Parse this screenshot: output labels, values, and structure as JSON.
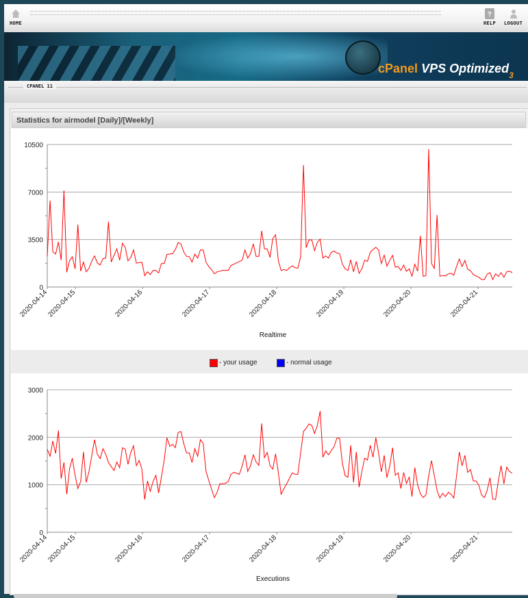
{
  "nav": {
    "home": "HOME",
    "help": "HELP",
    "logout": "LOGOUT"
  },
  "banner": {
    "brand": "cPanel",
    "product": "VPS Optimized",
    "version": "3"
  },
  "breadcrumb": {
    "label": "CPANEL 11"
  },
  "stats": {
    "title": "Statistics for airmodel [Daily]/[Weekly]"
  },
  "legend": {
    "your_usage": "- your usage",
    "normal_usage": "- normal usage",
    "your_color": "#ff0000",
    "normal_color": "#0000ff"
  },
  "chart_data": [
    {
      "type": "line",
      "title": "Realtime",
      "xlabel": "Realtime",
      "ylabel": "",
      "ylim": [
        0,
        10500
      ],
      "yticks": [
        0,
        3500,
        7000,
        10500
      ],
      "xlim_days": [
        0.58,
        7.51
      ],
      "xticks": [
        {
          "label": "2020-04-14",
          "day": 0.58
        },
        {
          "label": "2020-04-15",
          "day": 1
        },
        {
          "label": "2020-04-16",
          "day": 2
        },
        {
          "label": "2020-04-17",
          "day": 3
        },
        {
          "label": "2020-04-18",
          "day": 4
        },
        {
          "label": "2020-04-19",
          "day": 5
        },
        {
          "label": "2020-04-20",
          "day": 6
        },
        {
          "label": "2020-04-21",
          "day": 7
        }
      ],
      "grid": true,
      "series": [
        {
          "name": "your usage",
          "color": "#ff0000",
          "values": [
            2260,
            6370,
            2600,
            2430,
            3320,
            1980,
            7120,
            1090,
            1930,
            2230,
            1340,
            4600,
            1170,
            1840,
            1120,
            1390,
            1930,
            2290,
            1760,
            1620,
            2090,
            2130,
            4810,
            1840,
            2350,
            2810,
            1980,
            3230,
            2930,
            1930,
            2180,
            2730,
            1760,
            1790,
            1830,
            840,
            1120,
            920,
            1220,
            1220,
            1040,
            1730,
            1730,
            2400,
            2430,
            2460,
            2760,
            3270,
            3180,
            2600,
            2260,
            2230,
            1840,
            2430,
            2130,
            2730,
            2730,
            1840,
            1510,
            1290,
            970,
            1120,
            1170,
            1220,
            1220,
            1220,
            1590,
            1680,
            1780,
            1880,
            1980,
            2730,
            2130,
            2460,
            3180,
            2260,
            2260,
            4140,
            2810,
            2800,
            2180,
            3570,
            3850,
            1930,
            1220,
            1290,
            1220,
            1420,
            1560,
            1420,
            1390,
            2230,
            8990,
            2900,
            3470,
            3470,
            2680,
            3300,
            3530,
            2130,
            2290,
            2130,
            2550,
            2650,
            2510,
            2460,
            1680,
            1340,
            1220,
            2010,
            1120,
            1880,
            1010,
            1340,
            1980,
            1890,
            2550,
            2760,
            2930,
            2730,
            1730,
            2350,
            1540,
            1960,
            2330,
            1470,
            1510,
            1220,
            1620,
            1160,
            1340,
            800,
            1680,
            1160,
            3770,
            790,
            850,
            10170,
            1730,
            1370,
            5310,
            790,
            850,
            820,
            970,
            1020,
            870,
            1510,
            2060,
            1510,
            1960,
            1310,
            1210,
            920,
            820,
            720,
            550,
            550,
            950,
            1060,
            540,
            970,
            790,
            1060,
            720,
            1120,
            1170,
            1060
          ]
        }
      ]
    },
    {
      "type": "line",
      "title": "Executions",
      "xlabel": "Executions",
      "ylabel": "",
      "ylim": [
        0,
        3000
      ],
      "yticks": [
        0,
        1000,
        2000,
        3000
      ],
      "xlim_days": [
        0.58,
        7.51
      ],
      "xticks": [
        {
          "label": "2020-04-14",
          "day": 0.58
        },
        {
          "label": "2020-04-15",
          "day": 1
        },
        {
          "label": "2020-04-16",
          "day": 2
        },
        {
          "label": "2020-04-17",
          "day": 3
        },
        {
          "label": "2020-04-18",
          "day": 4
        },
        {
          "label": "2020-04-19",
          "day": 5
        },
        {
          "label": "2020-04-20",
          "day": 6
        },
        {
          "label": "2020-04-21",
          "day": 7
        }
      ],
      "grid": true,
      "series": [
        {
          "name": "your usage",
          "color": "#ff0000",
          "values": [
            1750,
            1600,
            1920,
            1660,
            2140,
            1130,
            1470,
            800,
            1330,
            1560,
            1190,
            920,
            1070,
            1690,
            1050,
            1280,
            1620,
            1950,
            1640,
            1550,
            1760,
            1640,
            1470,
            1380,
            1300,
            1480,
            1360,
            1780,
            1750,
            1430,
            1680,
            1820,
            1400,
            1510,
            1330,
            690,
            1080,
            860,
            1070,
            1200,
            830,
            1160,
            1520,
            1990,
            1810,
            1850,
            1780,
            2100,
            2120,
            1870,
            1670,
            1670,
            1470,
            1760,
            1600,
            1950,
            1870,
            1290,
            1090,
            910,
            730,
            840,
            1020,
            1020,
            1030,
            1070,
            1220,
            1260,
            1240,
            1220,
            1390,
            1630,
            1280,
            1400,
            1630,
            1480,
            1410,
            2290,
            1570,
            1680,
            1400,
            1330,
            1650,
            1250,
            800,
            920,
            1020,
            1140,
            1250,
            1220,
            1220,
            1670,
            2120,
            2190,
            2280,
            2250,
            2080,
            2250,
            2550,
            1580,
            1710,
            1630,
            1720,
            1800,
            1980,
            1980,
            1450,
            1190,
            1160,
            1830,
            1050,
            1690,
            950,
            1280,
            1560,
            1520,
            1830,
            1580,
            1990,
            1670,
            1270,
            1620,
            1150,
            1390,
            1780,
            1200,
            1250,
            920,
            1260,
            1030,
            1160,
            750,
            1360,
            1000,
            810,
            730,
            790,
            1190,
            1510,
            1190,
            880,
            720,
            820,
            750,
            840,
            800,
            720,
            1190,
            1690,
            1400,
            1620,
            1260,
            1320,
            1080,
            1080,
            990,
            780,
            730,
            880,
            1150,
            700,
            690,
            1080,
            1400,
            1020,
            1370,
            1280,
            1240
          ]
        }
      ]
    }
  ]
}
